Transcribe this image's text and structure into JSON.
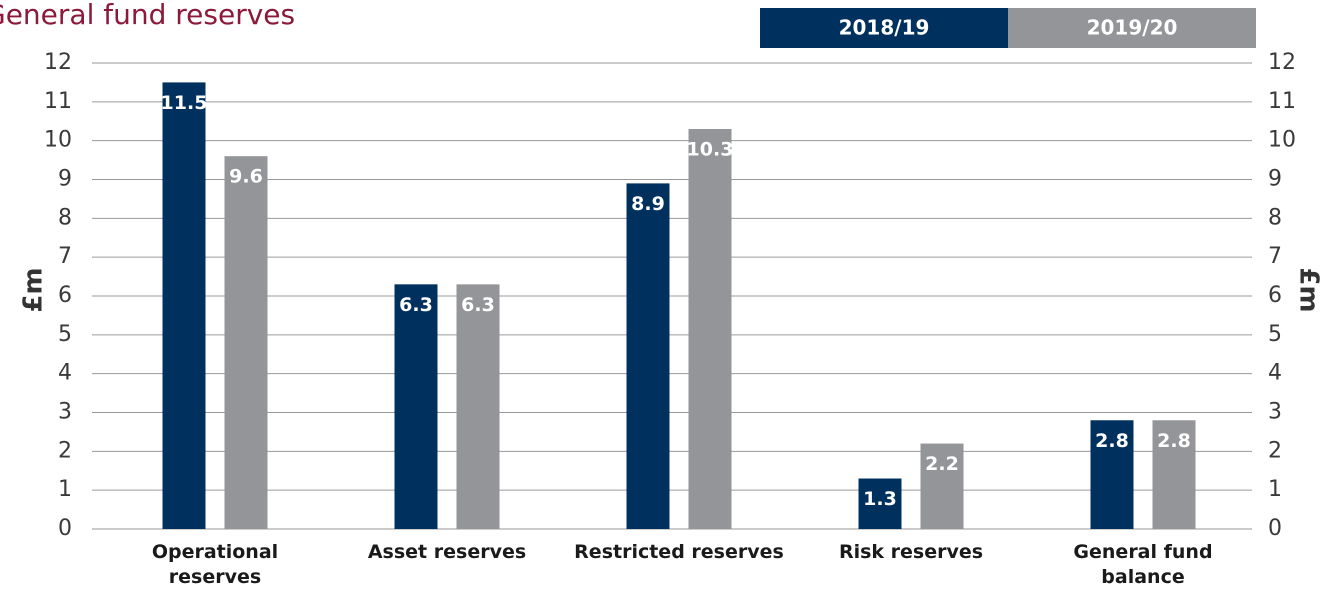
{
  "chart_data": {
    "type": "bar",
    "title": "General fund reserves",
    "categories": [
      "Operational\nreserves",
      "Asset reserves",
      "Restricted reserves",
      "Risk reserves",
      "General fund\nbalance"
    ],
    "series": [
      {
        "name": "2018/19",
        "color": "#00305e",
        "values": [
          11.5,
          6.3,
          8.9,
          1.3,
          2.8
        ]
      },
      {
        "name": "2019/20",
        "color": "#949599",
        "values": [
          9.6,
          6.3,
          10.3,
          2.2,
          2.8
        ]
      }
    ],
    "ylabel": "£m",
    "y2label": "£m",
    "ylim": [
      0,
      12
    ],
    "yticks": [
      0,
      1,
      2,
      3,
      4,
      5,
      6,
      7,
      8,
      9,
      10,
      11,
      12
    ],
    "y2lim": [
      0,
      12
    ],
    "y2ticks": [
      0,
      1,
      2,
      3,
      4,
      5,
      6,
      7,
      8,
      9,
      10,
      11,
      12
    ],
    "grid": true,
    "legend": "top-right"
  }
}
